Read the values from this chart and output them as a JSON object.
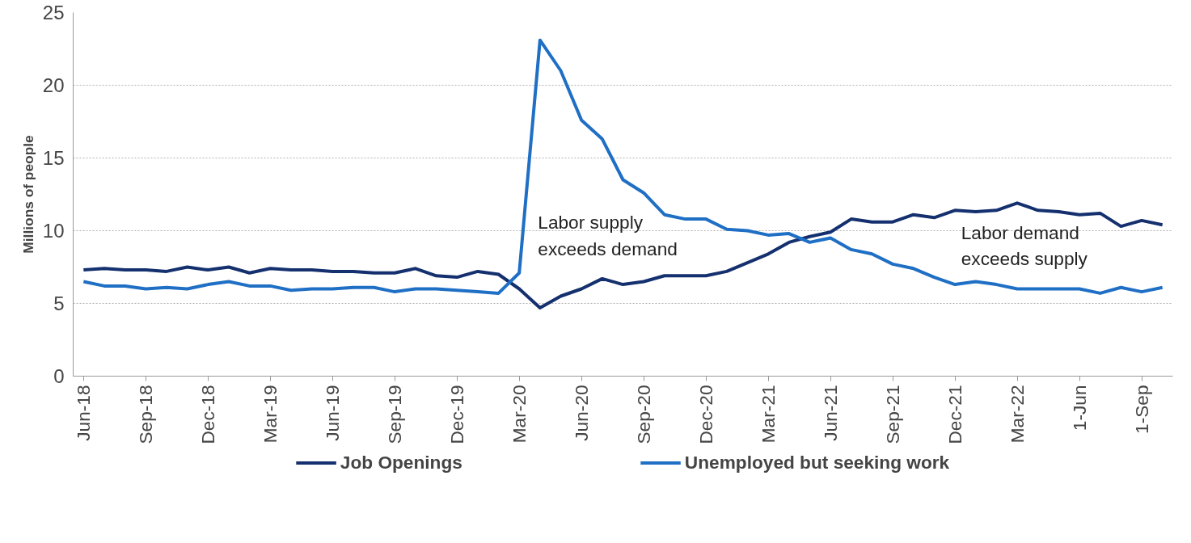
{
  "chart_data": {
    "type": "line",
    "ylabel": "Millions of people",
    "categories": [
      "Jun-18",
      null,
      null,
      "Sep-18",
      null,
      null,
      "Dec-18",
      null,
      null,
      "Mar-19",
      null,
      null,
      "Jun-19",
      null,
      null,
      "Sep-19",
      null,
      null,
      "Dec-19",
      null,
      null,
      "Mar-20",
      null,
      null,
      "Jun-20",
      null,
      null,
      "Sep-20",
      null,
      null,
      "Dec-20",
      null,
      null,
      "Mar-21",
      null,
      null,
      "Jun-21",
      null,
      null,
      "Sep-21",
      null,
      null,
      "Dec-21",
      null,
      null,
      "Mar-22",
      null,
      null,
      "1-Jun",
      null,
      null,
      "1-Sep",
      null
    ],
    "series": [
      {
        "name": "Job Openings",
        "color": "#14306e",
        "values": [
          7.3,
          7.4,
          7.3,
          7.3,
          7.2,
          7.5,
          7.3,
          7.5,
          7.1,
          7.4,
          7.3,
          7.3,
          7.2,
          7.2,
          7.1,
          7.1,
          7.4,
          6.9,
          6.8,
          7.2,
          7.0,
          6.0,
          4.7,
          5.5,
          6.0,
          6.7,
          6.3,
          6.5,
          6.9,
          6.9,
          6.9,
          7.2,
          7.8,
          8.4,
          9.2,
          9.6,
          9.9,
          10.8,
          10.6,
          10.6,
          11.1,
          10.9,
          11.4,
          11.3,
          11.4,
          11.9,
          11.4,
          11.3,
          11.1,
          11.2,
          10.3,
          10.7,
          10.4
        ]
      },
      {
        "name": "Unemployed but seeking work",
        "color": "#1f6fc5",
        "values": [
          6.5,
          6.2,
          6.2,
          6.0,
          6.1,
          6.0,
          6.3,
          6.5,
          6.2,
          6.2,
          5.9,
          6.0,
          6.0,
          6.1,
          6.1,
          5.8,
          6.0,
          6.0,
          5.9,
          5.8,
          5.7,
          7.1,
          23.1,
          21.0,
          17.6,
          16.3,
          13.5,
          12.6,
          11.1,
          10.8,
          10.8,
          10.1,
          10.0,
          9.7,
          9.8,
          9.2,
          9.5,
          8.7,
          8.4,
          7.7,
          7.4,
          6.8,
          6.3,
          6.5,
          6.3,
          6.0,
          6.0,
          6.0,
          6.0,
          5.7,
          6.1,
          5.8,
          6.1
        ]
      }
    ],
    "annotations": [
      "Labor supply\nexceeds demand",
      "Labor demand\nexceeds supply"
    ],
    "ylim": [
      0,
      25
    ],
    "yticks": [
      0,
      5,
      10,
      15,
      20,
      25
    ],
    "grid": "y",
    "legend": "bottom",
    "line_style": "solid",
    "marker": "none"
  }
}
